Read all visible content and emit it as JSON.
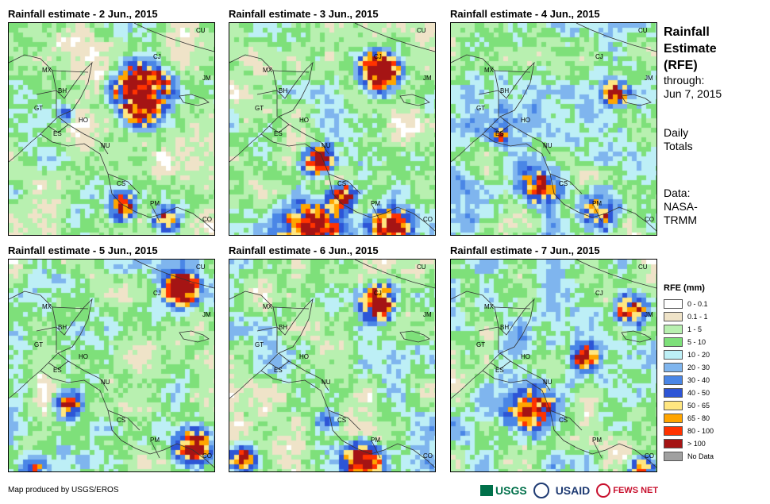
{
  "panels": [
    {
      "title": "Rainfall estimate - 2 Jun., 2015"
    },
    {
      "title": "Rainfall estimate - 3 Jun., 2015"
    },
    {
      "title": "Rainfall estimate - 4 Jun., 2015"
    },
    {
      "title": "Rainfall estimate - 5 Jun., 2015"
    },
    {
      "title": "Rainfall estimate - 6 Jun., 2015"
    },
    {
      "title": "Rainfall estimate - 7 Jun., 2015"
    }
  ],
  "country_labels": [
    "MX",
    "BH",
    "GT",
    "HO",
    "ES",
    "NU",
    "CS",
    "PM",
    "CO",
    "CU",
    "CJ",
    "JM"
  ],
  "sidebar": {
    "title_line1": "Rainfall",
    "title_line2": "Estimate",
    "title_line3": "(RFE)",
    "through_label": "through:",
    "through_date": "Jun 7, 2015",
    "totals_line1": "Daily",
    "totals_line2": "Totals",
    "data_line1": "Data:",
    "data_line2": "NASA-",
    "data_line3": "TRMM"
  },
  "legend": {
    "title": "RFE (mm)",
    "items": [
      {
        "label": "0 - 0.1",
        "color": "#ffffff"
      },
      {
        "label": "0.1 - 1",
        "color": "#efe3c8"
      },
      {
        "label": "1 - 5",
        "color": "#b8f0b0"
      },
      {
        "label": "5 - 10",
        "color": "#7ee07a"
      },
      {
        "label": "10 - 20",
        "color": "#bdeff6"
      },
      {
        "label": "20 - 30",
        "color": "#7fb5ee"
      },
      {
        "label": "30 - 40",
        "color": "#4a86e6"
      },
      {
        "label": "40 - 50",
        "color": "#2d55d6"
      },
      {
        "label": "50 - 65",
        "color": "#ffe680"
      },
      {
        "label": "65 - 80",
        "color": "#ffa500"
      },
      {
        "label": "80 - 100",
        "color": "#ff3300"
      },
      {
        "label": "> 100",
        "color": "#a51414"
      },
      {
        "label": "No Data",
        "color": "#a0a0a0"
      }
    ]
  },
  "credit": "Map produced by USGS/EROS",
  "logos": {
    "usgs": "USGS",
    "usaid": "USAID",
    "fews": "FEWS NET"
  }
}
